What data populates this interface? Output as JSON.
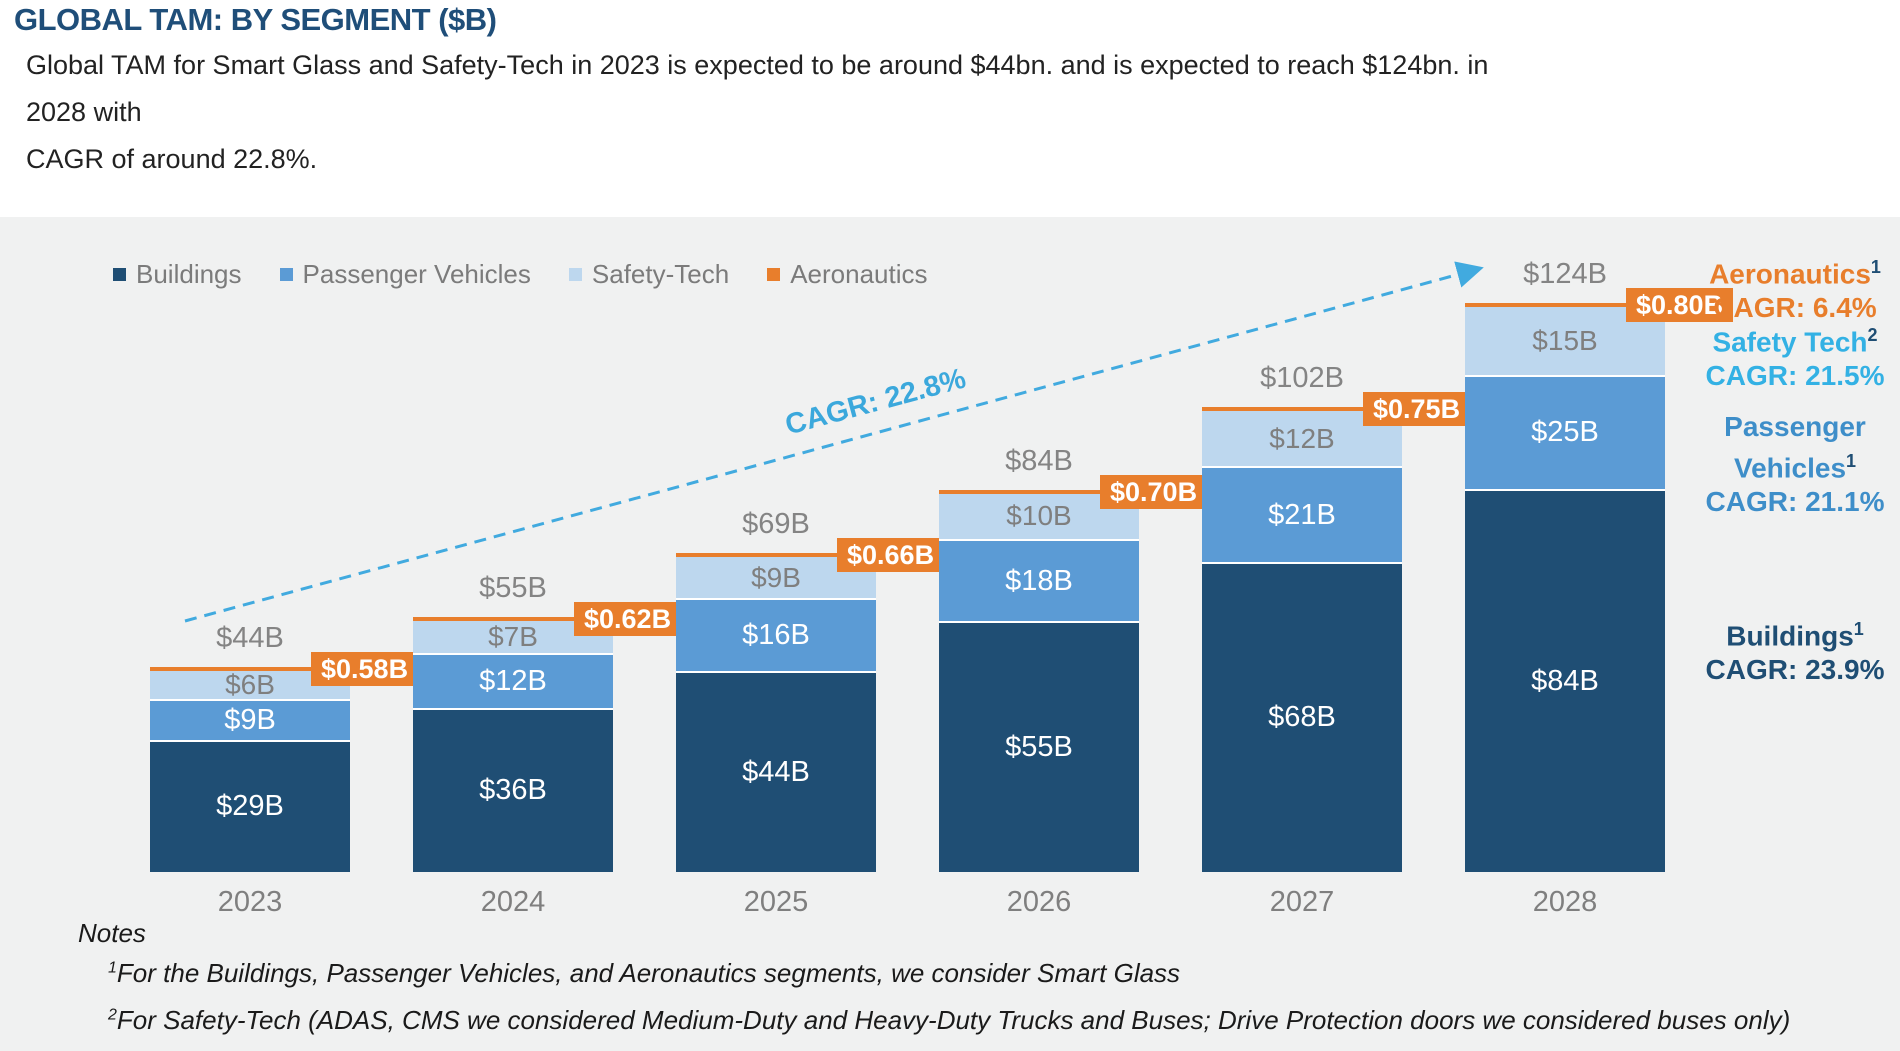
{
  "header": {
    "title": "GLOBAL TAM: BY SEGMENT ($B)",
    "subtitle_line1": "Global TAM for Smart Glass and Safety-Tech in 2023 is expected to be around $44bn. and is expected to reach $124bn. in 2028 with",
    "subtitle_line2": "CAGR of around 22.8%."
  },
  "colors": {
    "buildings": "#1F4E74",
    "passenger_vehicles": "#5B9BD5",
    "safety_tech": "#BDD7EE",
    "aeronautics": "#E87E2C",
    "panel_background": "#F0F1F1",
    "trend_arrow": "#41AADF",
    "title_navy": "#1F4E79",
    "annotation_safety_blue": "#33B1E4",
    "annotation_passenger_blue": "#3E8EC9"
  },
  "chart_data": {
    "type": "bar",
    "stacked": true,
    "title": "GLOBAL TAM: BY SEGMENT ($B)",
    "categories": [
      "2023",
      "2024",
      "2025",
      "2026",
      "2027",
      "2028"
    ],
    "series": [
      {
        "name": "Buildings",
        "color": "#1F4E74",
        "values": [
          29,
          36,
          44,
          55,
          68,
          84
        ],
        "labels": [
          "$29B",
          "$36B",
          "$44B",
          "$55B",
          "$68B",
          "$84B"
        ]
      },
      {
        "name": "Passenger Vehicles",
        "color": "#5B9BD5",
        "values": [
          9,
          12,
          16,
          18,
          21,
          25
        ],
        "labels": [
          "$9B",
          "$12B",
          "$16B",
          "$18B",
          "$21B",
          "$25B"
        ]
      },
      {
        "name": "Safety-Tech",
        "color": "#BDD7EE",
        "values": [
          6,
          7,
          9,
          10,
          12,
          15
        ],
        "labels": [
          "$6B",
          "$7B",
          "$9B",
          "$10B",
          "$12B",
          "$15B"
        ]
      },
      {
        "name": "Aeronautics",
        "color": "#E87E2C",
        "values": [
          0.58,
          0.62,
          0.66,
          0.7,
          0.75,
          0.8
        ],
        "labels": [
          "$0.58B",
          "$0.62B",
          "$0.66B",
          "$0.70B",
          "$0.75B",
          "$0.80B"
        ]
      }
    ],
    "totals": [
      "$44B",
      "$55B",
      "$69B",
      "$84B",
      "$102B",
      "$124B"
    ],
    "trend_label": "CAGR: 22.8%",
    "ylim": [
      0,
      130
    ],
    "grid": false,
    "legend_position": "top-left"
  },
  "annotations": [
    {
      "color": "#E87E2C",
      "lines": [
        {
          "text": "Aeronautics",
          "sup": "1"
        },
        {
          "text": "CAGR: 6.4%",
          "sup": ""
        }
      ]
    },
    {
      "color": "#33B1E4",
      "lines": [
        {
          "text": "Safety Tech",
          "sup": "2"
        },
        {
          "text": "CAGR: 21.5%",
          "sup": ""
        }
      ]
    },
    {
      "color": "#3E8EC9",
      "lines": [
        {
          "text": "Passenger",
          "sup": ""
        },
        {
          "text": "Vehicles",
          "sup": "1"
        },
        {
          "text": "CAGR: 21.1%",
          "sup": ""
        }
      ]
    },
    {
      "color": "#1F4E74",
      "lines": [
        {
          "text": "Buildings",
          "sup": "1"
        },
        {
          "text": "CAGR: 23.9%",
          "sup": ""
        }
      ]
    }
  ],
  "notes": {
    "heading": "Notes",
    "items": [
      {
        "sup": "1",
        "text": "For the Buildings, Passenger Vehicles, and Aeronautics segments, we consider Smart Glass"
      },
      {
        "sup": "2",
        "text": "For Safety-Tech (ADAS, CMS we considered Medium-Duty and Heavy-Duty Trucks and Buses; Drive Protection doors we considered buses only)"
      }
    ]
  }
}
